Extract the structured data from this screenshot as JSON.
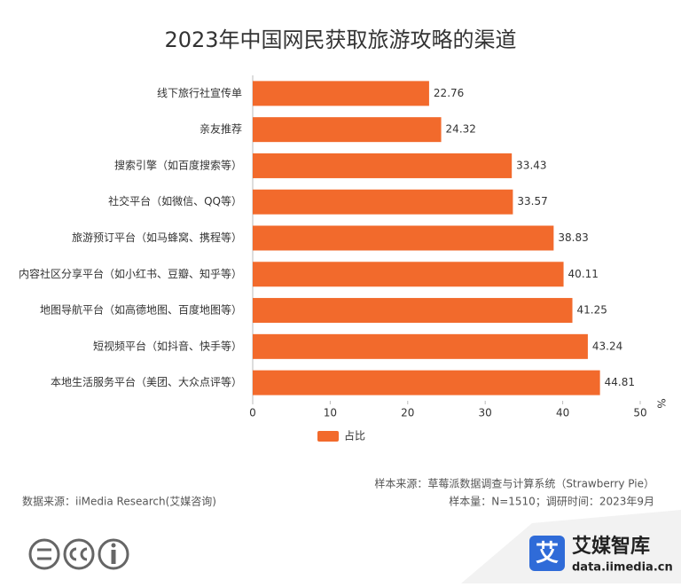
{
  "chart_data": {
    "type": "bar",
    "orientation": "horizontal",
    "title": "2023年中国网民获取旅游攻略的渠道",
    "categories": [
      "线下旅行社宣传单",
      "亲友推荐",
      "搜索引擎（如百度搜索等）",
      "社交平台（如微信、QQ等）",
      "旅游预订平台（如马蜂窝、携程等）",
      "内容社区分享平台（如小红书、豆瓣、知乎等）",
      "地图导航平台（如高德地图、百度地图等）",
      "短视频平台（如抖音、快手等）",
      "本地生活服务平台（美团、大众点评等）"
    ],
    "series": [
      {
        "name": "占比",
        "color": "#f26a2c",
        "values": [
          22.76,
          24.32,
          33.43,
          33.57,
          38.83,
          40.11,
          41.25,
          43.24,
          44.81
        ]
      }
    ],
    "xlim": [
      0,
      50
    ],
    "xticks": [
      0,
      10,
      20,
      30,
      40,
      50
    ],
    "xlabel": "%",
    "sample_source": "样本来源：草莓派数据调查与计算系统（Strawberry Pie）",
    "sample_size": "样本量：N=1510；调研时间：2023年9月",
    "source": "数据来源：iiMedia Research(艾媒咨询)",
    "brand": {
      "mark": "艾",
      "name": "艾媒智库",
      "url": "data.iimedia.cn"
    }
  }
}
